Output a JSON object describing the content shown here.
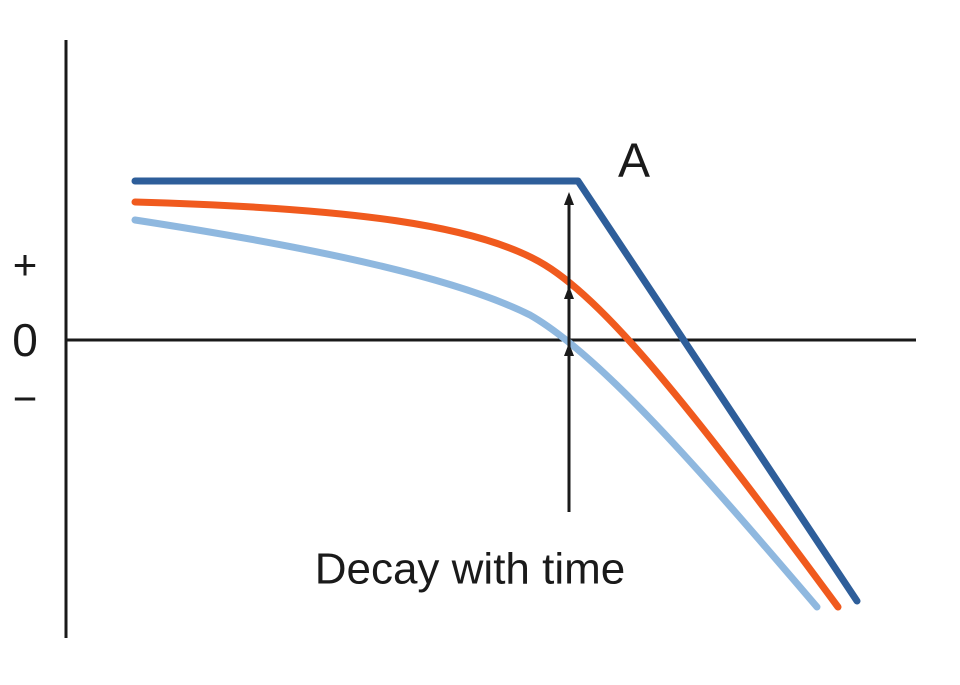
{
  "axis_labels": {
    "plus": "+",
    "zero": "0",
    "minus": "−"
  },
  "point_label": "A",
  "caption": "Decay with time"
}
